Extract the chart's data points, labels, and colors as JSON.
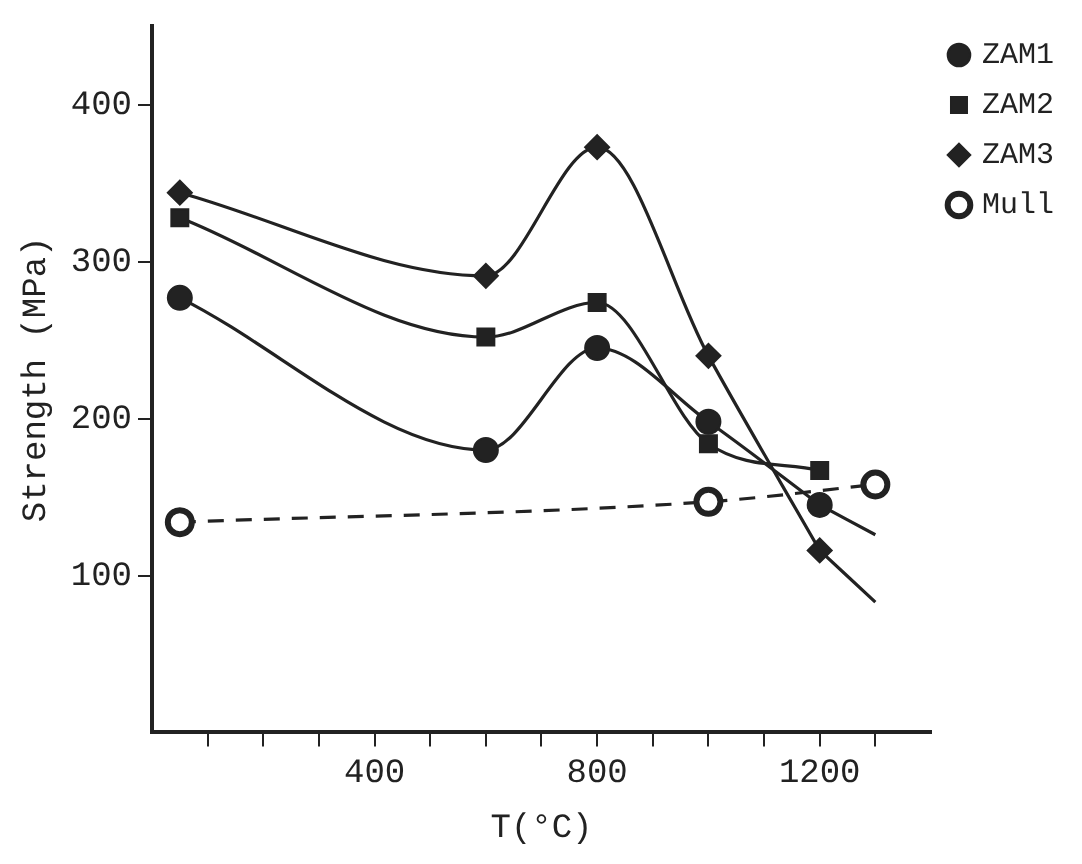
{
  "chart_data": {
    "type": "line",
    "xlabel": "T(°C)",
    "ylabel": "Strength (MPa)",
    "xlim": [
      0,
      1400
    ],
    "ylim": [
      0,
      450
    ],
    "xticks": [
      {
        "value": 100,
        "label": null
      },
      {
        "value": 200,
        "label": null
      },
      {
        "value": 300,
        "label": null
      },
      400,
      {
        "value": 500,
        "label": null
      },
      {
        "value": 600,
        "label": null
      },
      {
        "value": 700,
        "label": null
      },
      800,
      {
        "value": 900,
        "label": null
      },
      {
        "value": 1000,
        "label": null
      },
      {
        "value": 1100,
        "label": null
      },
      1200,
      {
        "value": 1300,
        "label": null
      }
    ],
    "yticks": [
      100,
      200,
      300,
      400
    ],
    "grid": false,
    "legend": "top right",
    "series": [
      {
        "name": "ZAM1",
        "color": "#222222",
        "marker": "circle",
        "line_style": "solid",
        "x": [
          50,
          600,
          800,
          1000,
          1200
        ],
        "values": [
          277,
          180,
          245,
          198,
          145
        ]
      },
      {
        "name": "ZAM2",
        "color": "#222222",
        "marker": "square",
        "line_style": "solid",
        "x": [
          50,
          600,
          800,
          1000,
          1200
        ],
        "values": [
          328,
          252,
          274,
          184,
          167
        ]
      },
      {
        "name": "ZAM3",
        "color": "#222222",
        "marker": "diamond",
        "line_style": "solid",
        "x": [
          50,
          600,
          800,
          1000,
          1200
        ],
        "values": [
          344,
          291,
          373,
          240,
          116
        ]
      },
      {
        "color": "#222222",
        "marker": "none",
        "line_style": "solid",
        "x": [
          1200,
          1300
        ],
        "values": [
          145,
          126
        ]
      },
      {
        "color": "#222222",
        "marker": "none",
        "line_style": "solid",
        "x": [
          1200,
          1300
        ],
        "values": [
          116,
          83
        ]
      },
      {
        "name": "Mull",
        "color": "#222222",
        "marker": "open circle",
        "line_style": "dashed",
        "x": [
          50,
          1000,
          1300
        ],
        "values": [
          134,
          147,
          158
        ]
      }
    ]
  }
}
